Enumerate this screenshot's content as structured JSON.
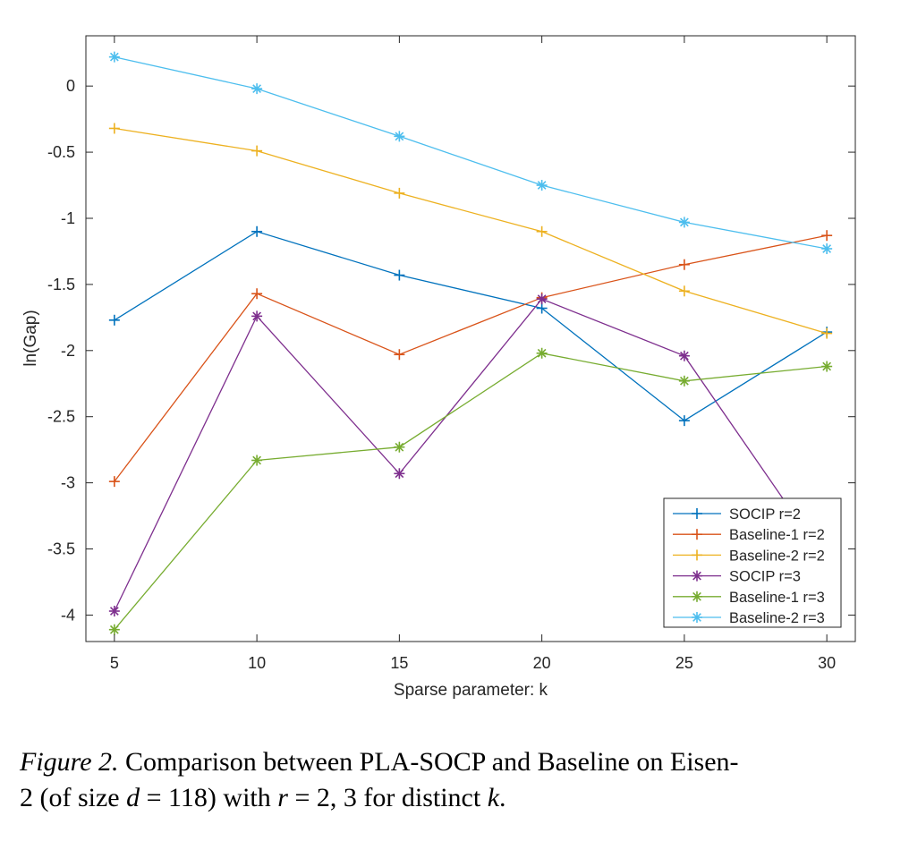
{
  "chart_data": {
    "type": "line",
    "title": "",
    "xlabel": "Sparse parameter: k",
    "ylabel": "ln(Gap)",
    "x": [
      5,
      10,
      15,
      20,
      25,
      30
    ],
    "xlim": [
      4,
      31
    ],
    "ylim": [
      -4.2,
      0.38
    ],
    "xticks": [
      5,
      10,
      15,
      20,
      25,
      30
    ],
    "xtick_labels": [
      "5",
      "10",
      "15",
      "20",
      "25",
      "30"
    ],
    "yticks": [
      0,
      -0.5,
      -1,
      -1.5,
      -2,
      -2.5,
      -3,
      -3.5,
      -4
    ],
    "ytick_labels": [
      "0",
      "-0.5",
      "-1",
      "-1.5",
      "-2",
      "-2.5",
      "-3",
      "-3.5",
      "-4"
    ],
    "grid": false,
    "legend_position": "bottom-right",
    "series": [
      {
        "name": "SOCIP r=2",
        "values": [
          -1.77,
          -1.1,
          -1.43,
          -1.68,
          -2.53,
          -1.86
        ],
        "color": "#0072BD",
        "marker": "plus"
      },
      {
        "name": "Baseline-1 r=2",
        "values": [
          -2.99,
          -1.57,
          -2.03,
          -1.6,
          -1.35,
          -1.13
        ],
        "color": "#D95319",
        "marker": "plus"
      },
      {
        "name": "Baseline-2 r=2",
        "values": [
          -0.32,
          -0.49,
          -0.81,
          -1.1,
          -1.55,
          -1.87
        ],
        "color": "#EDB120",
        "marker": "plus"
      },
      {
        "name": "SOCIP r=3",
        "values": [
          -3.97,
          -1.74,
          -2.93,
          -1.61,
          -2.04,
          -3.6
        ],
        "color": "#7E2F8E",
        "marker": "asterisk"
      },
      {
        "name": "Baseline-1 r=3",
        "values": [
          -4.11,
          -2.83,
          -2.73,
          -2.02,
          -2.23,
          -2.12
        ],
        "color": "#77AC30",
        "marker": "asterisk"
      },
      {
        "name": "Baseline-2 r=3",
        "values": [
          0.22,
          -0.02,
          -0.38,
          -0.75,
          -1.03,
          -1.23
        ],
        "color": "#4DBEEE",
        "marker": "asterisk"
      }
    ]
  },
  "caption": {
    "figure_label": "Figure 2.",
    "text_1": " Comparison between PLA-SOCP and Baseline on Eisen-",
    "text_2": "2 (of size ",
    "math_1": "d",
    "text_3": " = 118) with ",
    "math_2": "r",
    "text_4": " = 2, 3 for distinct ",
    "math_3": "k",
    "text_5": "."
  }
}
